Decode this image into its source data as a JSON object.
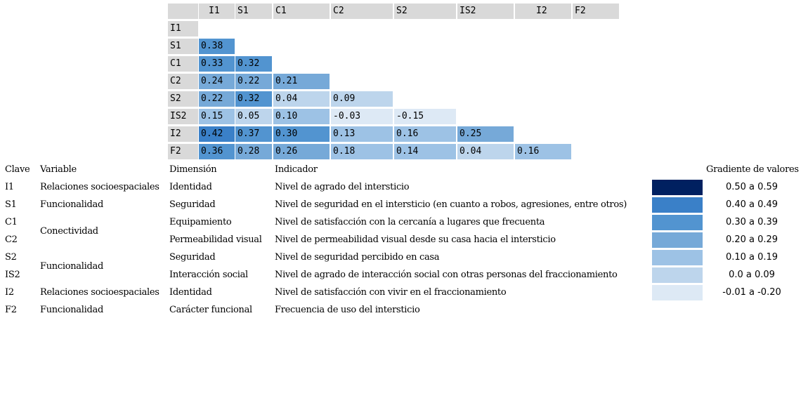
{
  "chart_data": {
    "type": "heatmap",
    "title": "",
    "variables": [
      "I1",
      "S1",
      "C1",
      "C2",
      "S2",
      "IS2",
      "I2",
      "F2"
    ],
    "matrix_lower_triangle": [
      [],
      [
        0.38
      ],
      [
        0.33,
        0.32
      ],
      [
        0.24,
        0.22,
        0.21
      ],
      [
        0.22,
        0.32,
        0.04,
        0.09
      ],
      [
        0.15,
        0.05,
        0.1,
        -0.03,
        -0.15
      ],
      [
        0.42,
        0.37,
        0.3,
        0.13,
        0.16,
        0.25
      ],
      [
        0.36,
        0.28,
        0.26,
        0.18,
        0.14,
        0.04,
        0.16
      ]
    ],
    "legend_title": "Gradiente de valores",
    "legend": [
      {
        "range": "0.50 a 0.59",
        "color": "#002060"
      },
      {
        "range": "0.40 a 0.49",
        "color": "#3A80C8"
      },
      {
        "range": "0.30 a 0.39",
        "color": "#5294D0"
      },
      {
        "range": "0.20 a 0.29",
        "color": "#76A9D8"
      },
      {
        "range": "0.10 a 0.19",
        "color": "#9DC2E5"
      },
      {
        "range": "0.0 a 0.09",
        "color": "#BDD5EC"
      },
      {
        "range": "-0.01 a -0.20",
        "color": "#DDE9F5"
      }
    ]
  },
  "matrix": {
    "col_headers": [
      "I1",
      "S1",
      "C1",
      "C2",
      "S2",
      "IS2",
      "I2",
      "F2"
    ],
    "row_headers": [
      "I1",
      "S1",
      "C1",
      "C2",
      "S2",
      "IS2",
      "I2",
      "F2"
    ],
    "cells": [
      [],
      [
        "0.38"
      ],
      [
        "0.33",
        "0.32"
      ],
      [
        "0.24",
        "0.22",
        "0.21"
      ],
      [
        "0.22",
        "0.32",
        "0.04",
        "0.09"
      ],
      [
        "0.15",
        "0.05",
        "0.10",
        "-0.03",
        "-0.15"
      ],
      [
        "0.42",
        "0.37",
        "0.30",
        "0.13",
        "0.16",
        "0.25"
      ],
      [
        "0.36",
        "0.28",
        "0.26",
        "0.18",
        "0.14",
        "0.04",
        "0.16"
      ]
    ]
  },
  "key_table": {
    "headers": {
      "clave": "Clave",
      "variable": "Variable",
      "dimension": "Dimensión",
      "indicador": "Indicador"
    },
    "rows": [
      {
        "clave": "I1",
        "dimension": "Identidad",
        "indicador": "Nivel de agrado del intersticio"
      },
      {
        "clave": "S1",
        "dimension": "Seguridad",
        "indicador": "Nivel de seguridad en el intersticio (en cuanto a robos, agresiones, entre otros)"
      },
      {
        "clave": "C1",
        "dimension": "Equipamiento",
        "indicador": "Nivel de satisfacción con la cercanía a lugares que frecuenta"
      },
      {
        "clave": "C2",
        "dimension": "Permeabilidad visual",
        "indicador": "Nivel de permeabilidad visual desde su casa hacia el intersticio"
      },
      {
        "clave": "S2",
        "dimension": "Seguridad",
        "indicador": "Nivel de seguridad percibido en casa"
      },
      {
        "clave": "IS2",
        "dimension": "Interacción social",
        "indicador": "Nivel de agrado de interacción social con otras personas del fraccionamiento"
      },
      {
        "clave": "I2",
        "dimension": "Identidad",
        "indicador": "Nivel de satisfacción con vivir en el fraccionamiento"
      },
      {
        "clave": "F2",
        "dimension": "Carácter funcional",
        "indicador": "Frecuencia de uso del intersticio"
      }
    ],
    "variable_groups": [
      {
        "label": "Relaciones socioespaciales",
        "rows": [
          0
        ]
      },
      {
        "label": "Funcionalidad",
        "rows": [
          1
        ]
      },
      {
        "label": "Conectividad",
        "rows": [
          2,
          3
        ]
      },
      {
        "label": "Funcionalidad",
        "rows": [
          4,
          5
        ]
      },
      {
        "label": "Relaciones socioespaciales",
        "rows": [
          6
        ]
      },
      {
        "label": "Funcionalidad",
        "rows": [
          7
        ]
      }
    ]
  },
  "legend": {
    "title": "Gradiente de valores",
    "items": [
      {
        "range": "0.50 a 0.59",
        "color": "#002060"
      },
      {
        "range": "0.40 a 0.49",
        "color": "#3A80C8"
      },
      {
        "range": "0.30 a 0.39",
        "color": "#5294D0"
      },
      {
        "range": "0.20 a 0.29",
        "color": "#76A9D8"
      },
      {
        "range": "0.10 a 0.19",
        "color": "#9DC2E5"
      },
      {
        "range": "0.0 a 0.09",
        "color": "#BDD5EC"
      },
      {
        "range": "-0.01 a -0.20",
        "color": "#DDE9F5"
      }
    ]
  }
}
